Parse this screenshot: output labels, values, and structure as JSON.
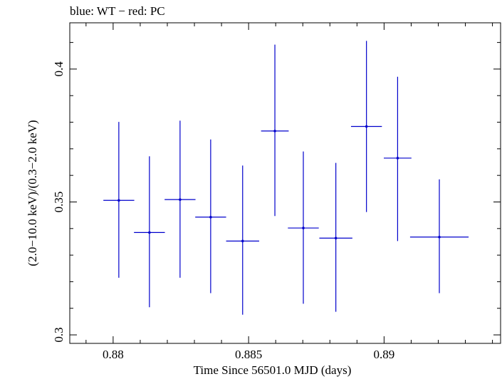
{
  "chart_data": {
    "type": "scatter",
    "title": "blue: WT − red: PC",
    "xlabel": "Time Since 56501.0 MJD (days)",
    "ylabel": "(2.0−10.0 keV)/(0.3−2.0 keV)",
    "xlim": [
      0.8784,
      0.8943
    ],
    "ylim": [
      0.2968,
      0.4174
    ],
    "xticks": [
      0.88,
      0.885,
      0.89
    ],
    "xtick_labels": [
      "0.88",
      "0.885",
      "0.89"
    ],
    "yticks": [
      0.3,
      0.35,
      0.4
    ],
    "ytick_labels": [
      "0.3",
      "0.35",
      "0.4"
    ],
    "grid": false,
    "series": [
      {
        "color": "#0000cc",
        "points": [
          {
            "x": 0.88021,
            "y": 0.3506,
            "xerr": 0.00057,
            "ylo": 0.3215,
            "yhi": 0.3801
          },
          {
            "x": 0.88134,
            "y": 0.3385,
            "xerr": 0.00057,
            "ylo": 0.3104,
            "yhi": 0.3672
          },
          {
            "x": 0.88247,
            "y": 0.3509,
            "xerr": 0.00057,
            "ylo": 0.3215,
            "yhi": 0.3806
          },
          {
            "x": 0.8836,
            "y": 0.3443,
            "xerr": 0.00057,
            "ylo": 0.3157,
            "yhi": 0.3735
          },
          {
            "x": 0.88478,
            "y": 0.3353,
            "xerr": 0.00061,
            "ylo": 0.3076,
            "yhi": 0.3637
          },
          {
            "x": 0.88597,
            "y": 0.3767,
            "xerr": 0.00051,
            "ylo": 0.3447,
            "yhi": 0.4092
          },
          {
            "x": 0.88702,
            "y": 0.3402,
            "xerr": 0.00057,
            "ylo": 0.3117,
            "yhi": 0.369
          },
          {
            "x": 0.88822,
            "y": 0.3364,
            "xerr": 0.00061,
            "ylo": 0.3087,
            "yhi": 0.3647
          },
          {
            "x": 0.88935,
            "y": 0.3784,
            "xerr": 0.00057,
            "ylo": 0.3462,
            "yhi": 0.4106
          },
          {
            "x": 0.8905,
            "y": 0.3665,
            "xerr": 0.00051,
            "ylo": 0.3353,
            "yhi": 0.3971
          },
          {
            "x": 0.89204,
            "y": 0.3368,
            "xerr": 0.00108,
            "ylo": 0.3157,
            "yhi": 0.3585
          }
        ]
      }
    ]
  }
}
